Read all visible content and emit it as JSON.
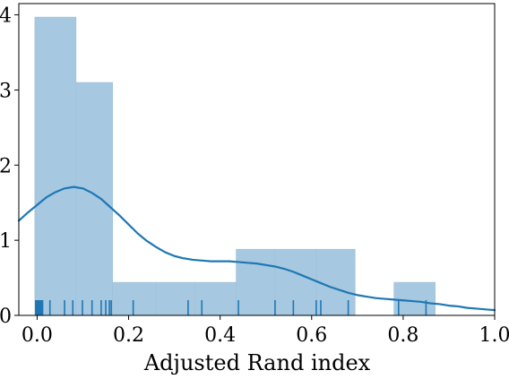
{
  "chart_data": {
    "type": "histogram",
    "xlabel": "Adjusted Rand index",
    "ylabel": "",
    "xlim": [
      -0.04,
      1.0
    ],
    "ylim": [
      0,
      4.15
    ],
    "grid": false,
    "x_ticks": [
      {
        "value": 0.0,
        "label": "0.0"
      },
      {
        "value": 0.2,
        "label": "0.2"
      },
      {
        "value": 0.4,
        "label": "0.4"
      },
      {
        "value": 0.6,
        "label": "0.6"
      },
      {
        "value": 0.8,
        "label": "0.8"
      },
      {
        "value": 1.0,
        "label": "1.0"
      }
    ],
    "y_ticks": [
      {
        "value": 0,
        "label": "0"
      },
      {
        "value": 1,
        "label": "1"
      },
      {
        "value": 2,
        "label": "2"
      },
      {
        "value": 3,
        "label": "3"
      },
      {
        "value": 4,
        "label": "4"
      }
    ],
    "bars": [
      {
        "x0": -0.005,
        "x1": 0.085,
        "value": 3.97
      },
      {
        "x0": 0.085,
        "x1": 0.165,
        "value": 3.1
      },
      {
        "x0": 0.165,
        "x1": 0.26,
        "value": 0.44
      },
      {
        "x0": 0.26,
        "x1": 0.345,
        "value": 0.44
      },
      {
        "x0": 0.345,
        "x1": 0.435,
        "value": 0.44
      },
      {
        "x0": 0.435,
        "x1": 0.52,
        "value": 0.88
      },
      {
        "x0": 0.52,
        "x1": 0.61,
        "value": 0.88
      },
      {
        "x0": 0.61,
        "x1": 0.695,
        "value": 0.88
      },
      {
        "x0": 0.695,
        "x1": 0.78,
        "value": 0.0
      },
      {
        "x0": 0.78,
        "x1": 0.87,
        "value": 0.44
      }
    ],
    "kde": {
      "x": [
        -0.04,
        -0.02,
        0.0,
        0.02,
        0.04,
        0.06,
        0.08,
        0.1,
        0.12,
        0.14,
        0.16,
        0.18,
        0.2,
        0.22,
        0.24,
        0.26,
        0.28,
        0.3,
        0.32,
        0.34,
        0.36,
        0.38,
        0.4,
        0.42,
        0.44,
        0.46,
        0.48,
        0.5,
        0.52,
        0.54,
        0.56,
        0.58,
        0.6,
        0.62,
        0.64,
        0.66,
        0.68,
        0.7,
        0.72,
        0.74,
        0.76,
        0.78,
        0.8,
        0.82,
        0.84,
        0.86,
        0.88,
        0.9,
        0.92,
        0.94,
        0.96,
        0.98,
        1.0
      ],
      "y": [
        1.26,
        1.37,
        1.47,
        1.57,
        1.64,
        1.69,
        1.71,
        1.69,
        1.63,
        1.55,
        1.44,
        1.33,
        1.21,
        1.09,
        0.99,
        0.91,
        0.84,
        0.79,
        0.76,
        0.74,
        0.73,
        0.72,
        0.72,
        0.72,
        0.71,
        0.7,
        0.69,
        0.67,
        0.65,
        0.62,
        0.58,
        0.53,
        0.48,
        0.43,
        0.38,
        0.34,
        0.3,
        0.27,
        0.25,
        0.23,
        0.22,
        0.21,
        0.2,
        0.19,
        0.18,
        0.16,
        0.15,
        0.13,
        0.12,
        0.1,
        0.09,
        0.08,
        0.07
      ]
    },
    "rug": [
      -0.003,
      -0.001,
      0.0,
      0.002,
      0.004,
      0.006,
      0.008,
      0.01,
      0.012,
      0.028,
      0.06,
      0.078,
      0.099,
      0.12,
      0.14,
      0.15,
      0.158,
      0.162,
      0.21,
      0.33,
      0.36,
      0.44,
      0.52,
      0.56,
      0.61,
      0.62,
      0.68,
      0.79,
      0.85
    ],
    "colors": {
      "bar_fill": "#a6c8e1",
      "bar_edge": "#9ec0da",
      "line": "#1f77b4",
      "rug": "#1f77b4",
      "axes": "#000000"
    }
  }
}
